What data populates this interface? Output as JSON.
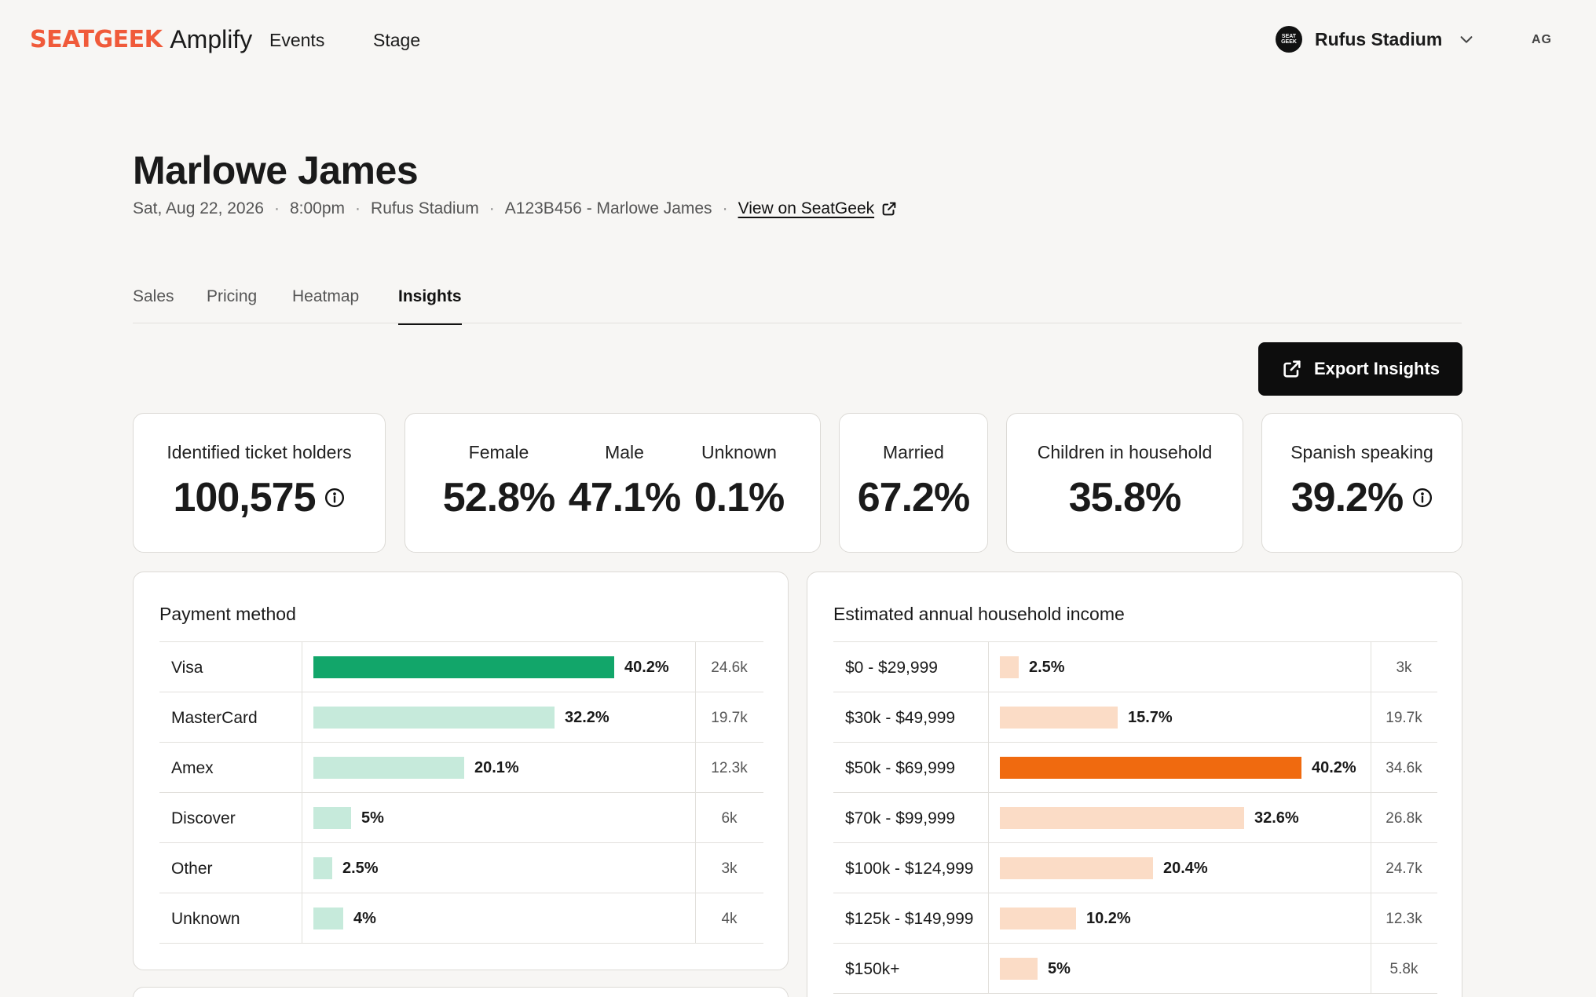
{
  "nav": {
    "brand": "SEATGEEK",
    "product": "Amplify",
    "links": [
      "Events",
      "Stage"
    ],
    "venue_logo_text": "SEAT GEEK",
    "venue": "Rufus Stadium",
    "avatar": "AG"
  },
  "event": {
    "title": "Marlowe James",
    "date": "Sat, Aug 22, 2026",
    "time": "8:00pm",
    "venue": "Rufus Stadium",
    "code": "A123B456 - Marlowe James",
    "view_link": "View on SeatGeek"
  },
  "tabs": [
    "Sales",
    "Pricing",
    "Heatmap",
    "Insights"
  ],
  "active_tab": "Insights",
  "export_label": "Export Insights",
  "stats": {
    "ticket_holders": {
      "label": "Identified ticket holders",
      "value": "100,575"
    },
    "gender": [
      {
        "label": "Female",
        "value": "52.8%"
      },
      {
        "label": "Male",
        "value": "47.1%"
      },
      {
        "label": "Unknown",
        "value": "0.1%"
      }
    ],
    "married": {
      "label": "Married",
      "value": "67.2%"
    },
    "children": {
      "label": "Children in household",
      "value": "35.8%"
    },
    "spanish": {
      "label": "Spanish speaking",
      "value": "39.2%"
    }
  },
  "payment": {
    "title": "Payment method",
    "rows": [
      {
        "label": "Visa",
        "pct": "40.2%",
        "value": 40.2,
        "count": "24.6k",
        "highlight": true
      },
      {
        "label": "MasterCard",
        "pct": "32.2%",
        "value": 32.2,
        "count": "19.7k"
      },
      {
        "label": "Amex",
        "pct": "20.1%",
        "value": 20.1,
        "count": "12.3k"
      },
      {
        "label": "Discover",
        "pct": "5%",
        "value": 5,
        "count": "6k"
      },
      {
        "label": "Other",
        "pct": "2.5%",
        "value": 2.5,
        "count": "3k"
      },
      {
        "label": "Unknown",
        "pct": "4%",
        "value": 4,
        "count": "4k"
      }
    ],
    "color_highlight": "#12a66a",
    "color_base": "#c6eadb"
  },
  "income": {
    "title": "Estimated annual household income",
    "rows": [
      {
        "label": "$0 - $29,999",
        "pct": "2.5%",
        "value": 2.5,
        "count": "3k"
      },
      {
        "label": "$30k - $49,999",
        "pct": "15.7%",
        "value": 15.7,
        "count": "19.7k"
      },
      {
        "label": "$50k - $69,999",
        "pct": "40.2%",
        "value": 40.2,
        "count": "34.6k",
        "highlight": true
      },
      {
        "label": "$70k - $99,999",
        "pct": "32.6%",
        "value": 32.6,
        "count": "26.8k"
      },
      {
        "label": "$100k - $124,999",
        "pct": "20.4%",
        "value": 20.4,
        "count": "24.7k"
      },
      {
        "label": "$125k - $149,999",
        "pct": "10.2%",
        "value": 10.2,
        "count": "12.3k"
      },
      {
        "label": "$150k+",
        "pct": "5%",
        "value": 5,
        "count": "5.8k"
      }
    ],
    "color_highlight": "#f06a0f",
    "color_base": "#fbdcc6"
  },
  "colors": {
    "background": "#f7f6f4",
    "brand": "#f05a3a",
    "button": "#0d0d0d"
  }
}
